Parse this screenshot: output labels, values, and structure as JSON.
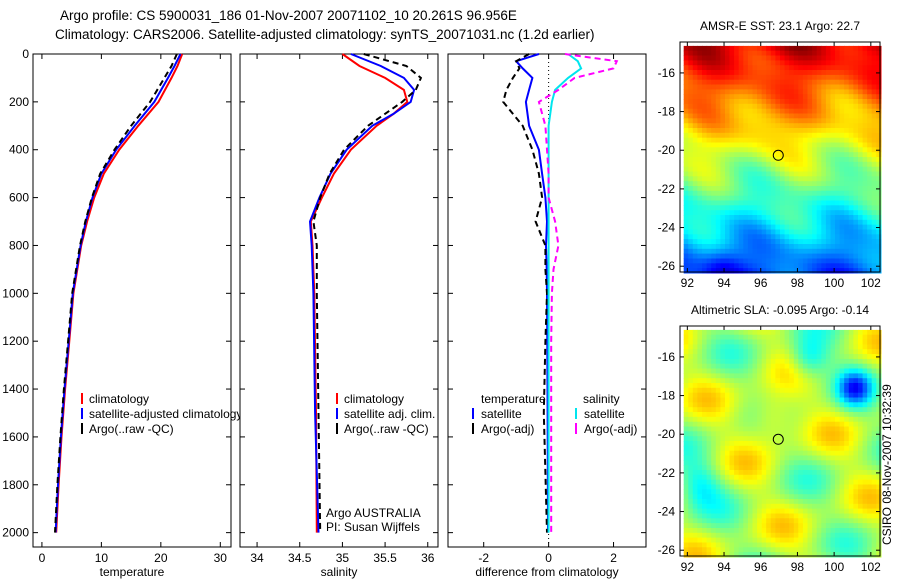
{
  "title_line1": "Argo profile: CS 5900031_186 01-Nov-2007 20071102_10 20.261S 96.956E",
  "title_line2": "Climatology: CARS2006. Satellite-adjusted climatology: synTS_20071031.nc (1.2d earlier)",
  "side_label": "CSIRO 08-Nov-2007 10:32:39",
  "chart_data": [
    {
      "type": "line",
      "id": "temperature",
      "xlabel": "temperature",
      "ylabel": "",
      "xlim": [
        -1.5,
        31.8
      ],
      "ylim": [
        2060,
        0
      ],
      "xticks": [
        0,
        10,
        20,
        30
      ],
      "yticks": [
        0,
        200,
        400,
        600,
        800,
        1000,
        1200,
        1400,
        1600,
        1800,
        2000
      ],
      "depth": [
        0,
        50,
        100,
        200,
        300,
        400,
        500,
        600,
        700,
        800,
        1000,
        1200,
        1400,
        1600,
        1800,
        2000
      ],
      "series": [
        {
          "name": "climatology",
          "color": "#ff0000",
          "dash": false,
          "values": [
            23.6,
            22.8,
            21.8,
            19.6,
            16.2,
            13.0,
            10.4,
            8.8,
            7.6,
            6.6,
            5.3,
            4.6,
            3.9,
            3.3,
            2.8,
            2.4
          ]
        },
        {
          "name": "satellite-adjusted climatology",
          "color": "#0000ff",
          "dash": false,
          "values": [
            23.3,
            22.3,
            21.2,
            18.9,
            15.6,
            12.5,
            10.0,
            8.5,
            7.4,
            6.5,
            5.2,
            4.5,
            3.8,
            3.2,
            2.7,
            2.3
          ]
        },
        {
          "name": "Argo(..raw -QC)",
          "color": "#000000",
          "dash": true,
          "values": [
            22.7,
            21.8,
            20.6,
            18.2,
            15.0,
            12.2,
            9.8,
            8.4,
            7.3,
            6.4,
            5.1,
            4.4,
            3.7,
            3.1,
            2.6,
            2.2
          ]
        }
      ]
    },
    {
      "type": "line",
      "id": "salinity",
      "xlabel": "salinity",
      "xlim": [
        33.8,
        36.12
      ],
      "ylim": [
        2060,
        0
      ],
      "xticks": [
        34,
        34.5,
        35,
        35.5,
        36
      ],
      "depth": [
        0,
        50,
        100,
        150,
        200,
        250,
        300,
        400,
        500,
        600,
        700,
        800,
        1000,
        1500,
        2000
      ],
      "series": [
        {
          "name": "climatology",
          "color": "#ff0000",
          "dash": false,
          "values": [
            35.0,
            35.2,
            35.5,
            35.72,
            35.76,
            35.6,
            35.4,
            35.1,
            34.9,
            34.76,
            34.63,
            34.65,
            34.67,
            34.69,
            34.7
          ]
        },
        {
          "name": "satellite adj. clim.",
          "color": "#0000ff",
          "dash": false,
          "values": [
            35.1,
            35.45,
            35.72,
            35.84,
            35.8,
            35.6,
            35.35,
            35.05,
            34.86,
            34.73,
            34.62,
            34.64,
            34.66,
            34.68,
            34.72
          ]
        },
        {
          "name": "Argo(..raw -QC)",
          "color": "#000000",
          "dash": true,
          "values": [
            35.25,
            35.75,
            35.92,
            35.86,
            35.7,
            35.5,
            35.3,
            35.02,
            34.85,
            34.74,
            34.66,
            34.7,
            34.7,
            34.72,
            34.74
          ]
        }
      ],
      "annotations": [
        "Argo AUSTRALIA",
        "PI: Susan Wijffels"
      ]
    },
    {
      "type": "line",
      "id": "difference",
      "xlabel": "difference from climatology",
      "xlim": [
        -3.1,
        3.0
      ],
      "ylim": [
        2060,
        0
      ],
      "xticks": [
        -2,
        0,
        2
      ],
      "depth": [
        0,
        30,
        60,
        100,
        150,
        200,
        300,
        400,
        500,
        600,
        700,
        800,
        900,
        1000,
        1200,
        1500,
        2000
      ],
      "legend_headers": [
        "temperature",
        "salinity"
      ],
      "series": [
        {
          "name": "satellite",
          "group": "temperature",
          "color": "#0000ff",
          "dash": false,
          "values": [
            -0.3,
            -1.0,
            -0.8,
            -0.5,
            -0.6,
            -0.7,
            -0.6,
            -0.3,
            -0.2,
            -0.1,
            -0.05,
            -0.08,
            -0.06,
            -0.05,
            -0.04,
            -0.03,
            -0.02
          ]
        },
        {
          "name": "Argo(-adj)",
          "group": "temperature",
          "color": "#000000",
          "dash": true,
          "values": [
            -0.6,
            -1.0,
            -0.9,
            -1.1,
            -1.3,
            -1.4,
            -0.8,
            -0.5,
            -0.3,
            -0.2,
            -0.4,
            -0.1,
            -0.1,
            -0.05,
            -0.1,
            -0.15,
            -0.05
          ]
        },
        {
          "name": "satellite",
          "group": "salinity",
          "color": "#00e5ee",
          "dash": false,
          "values": [
            0.6,
            0.9,
            1.0,
            0.6,
            0.2,
            0.1,
            0.0,
            0.0,
            0.0,
            0.0,
            0.0,
            0.0,
            0.0,
            0.0,
            0.0,
            0.0,
            0.0
          ]
        },
        {
          "name": "Argo(-adj)",
          "group": "salinity",
          "color": "#ff00ff",
          "dash": true,
          "values": [
            0.5,
            2.1,
            2.0,
            0.8,
            0.3,
            -0.3,
            -0.1,
            -0.05,
            0.0,
            0.0,
            0.2,
            0.3,
            0.15,
            0.1,
            0.08,
            0.08,
            0.08
          ]
        }
      ]
    },
    {
      "type": "heatmap",
      "id": "sst-map",
      "title": "AMSR-E SST: 23.1 Argo: 22.7",
      "xlim": [
        91.6,
        102.5
      ],
      "ylim": [
        -26.3,
        -14.4
      ],
      "xticks": [
        92,
        94,
        96,
        98,
        100,
        102
      ],
      "yticks": [
        -16,
        -18,
        -20,
        -22,
        -24,
        -26
      ],
      "marker": {
        "lon": 96.956,
        "lat": -20.261
      }
    },
    {
      "type": "heatmap",
      "id": "sla-map",
      "title": "Altimetric SLA: -0.095 Argo: -0.14",
      "xlim": [
        91.6,
        102.5
      ],
      "ylim": [
        -26.3,
        -14.4
      ],
      "xticks": [
        92,
        94,
        96,
        98,
        100,
        102
      ],
      "yticks": [
        -16,
        -18,
        -20,
        -22,
        -24,
        -26
      ],
      "marker": {
        "lon": 96.956,
        "lat": -20.261
      }
    }
  ]
}
